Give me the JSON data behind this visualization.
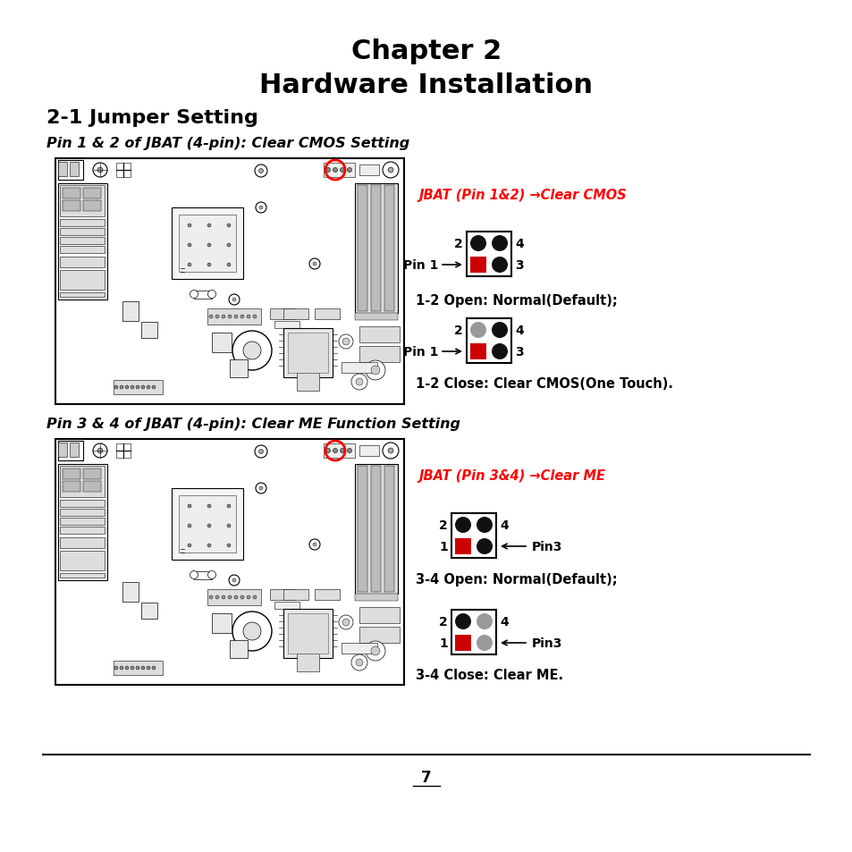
{
  "title_line1": "Chapter 2",
  "title_line2": "Hardware Installation",
  "section_title": "2-1 Jumper Setting",
  "subsection1": "Pin 1 & 2 of JBAT (4-pin): Clear CMOS Setting",
  "subsection2": "Pin 3 & 4 of JBAT (4-pin): Clear ME Function Setting",
  "red_label1": "JBAT (Pin 1&2) →Clear CMOS",
  "red_label2": "JBAT (Pin 3&4) →Clear ME",
  "diag1_open_label": "1-2 Open: Normal(Default);",
  "diag1_close_label": "1-2 Close: Clear CMOS(One Touch).",
  "diag2_open_label": "3-4 Open: Normal(Default);",
  "diag2_close_label": "3-4 Close: Clear ME.",
  "page_number": "7",
  "bg_color": "#ffffff",
  "lw_thin": 0.4,
  "lw_med": 0.8,
  "lw_thick": 1.5
}
